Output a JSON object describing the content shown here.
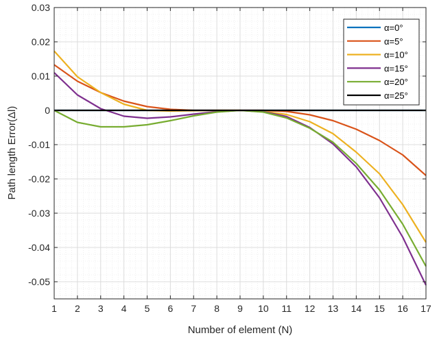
{
  "chart_data": {
    "type": "line",
    "title": "",
    "xlabel": "Number of element (N)",
    "ylabel": "Path length Error(Δl)",
    "xlim": [
      1,
      17
    ],
    "ylim": [
      -0.055,
      0.03
    ],
    "x_ticks": [
      1,
      2,
      3,
      4,
      5,
      6,
      7,
      8,
      9,
      10,
      11,
      12,
      13,
      14,
      15,
      16,
      17
    ],
    "x_tick_labels": [
      "1",
      "2",
      "3",
      "4",
      "5",
      "6",
      "7",
      "8",
      "9",
      "10",
      "11",
      "12",
      "13",
      "14",
      "15",
      "16",
      "17"
    ],
    "y_ticks": [
      0.03,
      0.02,
      0.01,
      0,
      -0.01,
      -0.02,
      -0.03,
      -0.04,
      -0.05
    ],
    "y_tick_labels": [
      "0.03",
      "0.02",
      "0.01",
      "0",
      "-0.01",
      "-0.02",
      "-0.03",
      "-0.04",
      "-0.05"
    ],
    "grid": true,
    "minor_grid": true,
    "legend_position": "top-right",
    "x": [
      1,
      2,
      3,
      4,
      5,
      6,
      7,
      8,
      9,
      10,
      11,
      12,
      13,
      14,
      15,
      16,
      17
    ],
    "series": [
      {
        "name": "α=0°",
        "color": "#0072bd",
        "values": [
          0,
          0,
          0,
          0,
          0,
          0,
          0,
          0,
          0,
          0,
          0,
          0,
          0,
          0,
          0,
          0,
          0
        ]
      },
      {
        "name": "α=5°",
        "color": "#d95319",
        "values": [
          0.0133,
          0.0085,
          0.0052,
          0.0027,
          0.0011,
          0.0003,
          0.0,
          0.0,
          0.0,
          0.0,
          -0.0003,
          -0.0013,
          -0.003,
          -0.0055,
          -0.0088,
          -0.013,
          -0.019
        ]
      },
      {
        "name": "α=10°",
        "color": "#edb120",
        "values": [
          0.0173,
          0.0098,
          0.0052,
          0.0018,
          0.0,
          -0.0002,
          -0.0001,
          0.0,
          0.0,
          -0.0003,
          -0.0012,
          -0.0033,
          -0.0068,
          -0.0122,
          -0.0185,
          -0.0275,
          -0.0385
        ]
      },
      {
        "name": "α=15°",
        "color": "#7e2f8e",
        "values": [
          0.011,
          0.0045,
          0.0005,
          -0.0017,
          -0.0023,
          -0.0019,
          -0.0011,
          -0.0004,
          0.0,
          -0.0004,
          -0.0018,
          -0.005,
          -0.0098,
          -0.0165,
          -0.0255,
          -0.037,
          -0.051
        ]
      },
      {
        "name": "α=20°",
        "color": "#77ac30",
        "values": [
          0.0,
          -0.0035,
          -0.0048,
          -0.0048,
          -0.0042,
          -0.003,
          -0.0016,
          -0.0005,
          0.0,
          -0.0005,
          -0.0022,
          -0.0052,
          -0.0093,
          -0.0155,
          -0.0232,
          -0.0332,
          -0.0455
        ]
      },
      {
        "name": "α=25°",
        "color": "#000000",
        "values": [
          0,
          0,
          0,
          0,
          0,
          0,
          0,
          0,
          0,
          0,
          0,
          0,
          0,
          0,
          0,
          0,
          0
        ]
      }
    ]
  }
}
